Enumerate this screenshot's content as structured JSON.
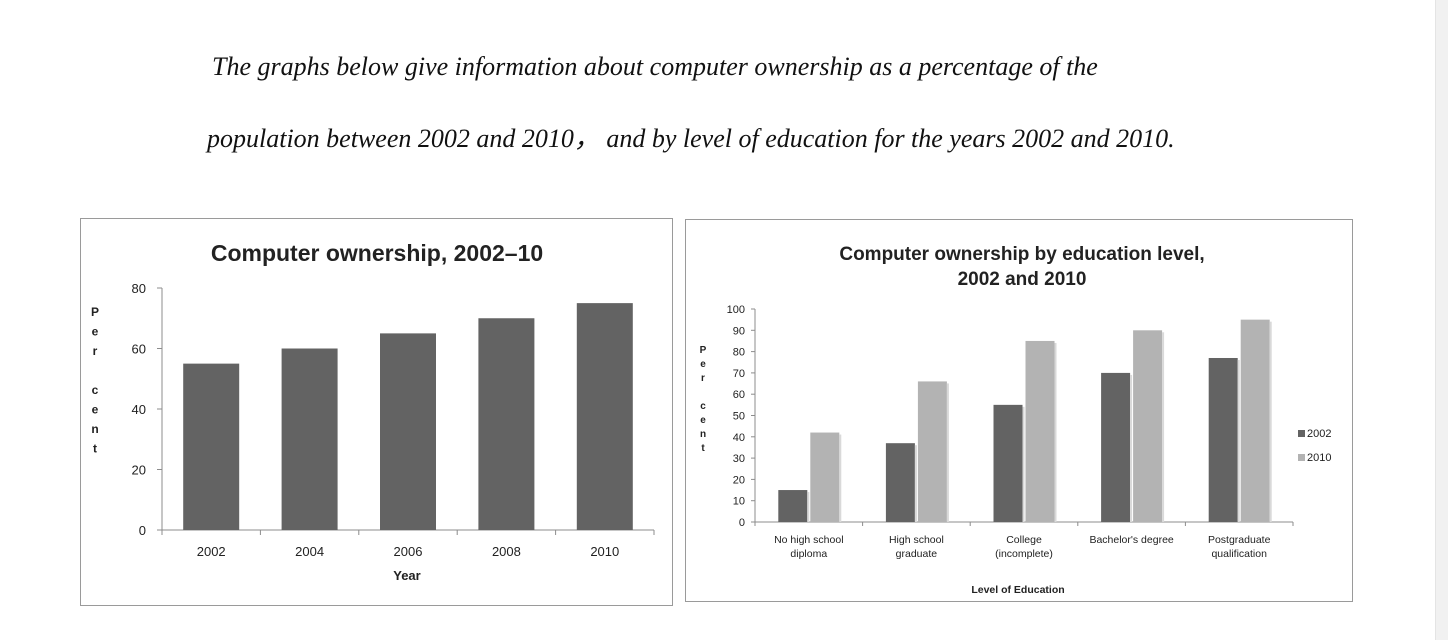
{
  "prompt": {
    "line1": "The graphs below give information about computer ownership as a percentage of the",
    "line2": "population between 2002 and 2010， and by level of education for the years 2002 and 2010."
  },
  "colors": {
    "bar_dark": "#636363",
    "bar_light": "#b3b3b3",
    "axis": "#8c8c8c",
    "border": "#9a9a9a"
  },
  "chart_data": [
    {
      "type": "bar",
      "title": "Computer ownership, 2002–10",
      "xlabel": "Year",
      "ylabel": "Per cent",
      "categories": [
        "2002",
        "2004",
        "2006",
        "2008",
        "2010"
      ],
      "values": [
        55,
        60,
        65,
        70,
        75
      ],
      "ylim": [
        0,
        80
      ],
      "yticks": [
        0,
        20,
        40,
        60,
        80
      ],
      "grid": false,
      "legend": "none"
    },
    {
      "type": "bar",
      "title": "Computer ownership by education level,",
      "subtitle": "2002 and 2010",
      "xlabel": "Level of Education",
      "ylabel": "Per cent",
      "categories": [
        [
          "No high school",
          "diploma"
        ],
        [
          "High school",
          "graduate"
        ],
        [
          "College",
          "(incomplete)"
        ],
        [
          "Bachelor's degree"
        ],
        [
          "Postgraduate",
          "qualification"
        ]
      ],
      "series": [
        {
          "name": "2002",
          "values": [
            15,
            37,
            55,
            70,
            77
          ]
        },
        {
          "name": "2010",
          "values": [
            42,
            66,
            85,
            90,
            95
          ]
        }
      ],
      "ylim": [
        0,
        100
      ],
      "yticks": [
        0,
        10,
        20,
        30,
        40,
        50,
        60,
        70,
        80,
        90,
        100
      ],
      "grid": false,
      "legend": "right"
    }
  ]
}
